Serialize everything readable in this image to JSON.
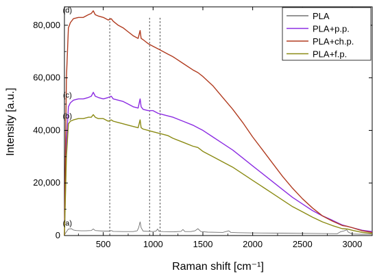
{
  "chart_data": {
    "type": "line",
    "xlabel": "Raman shift [cm⁻¹]",
    "ylabel": "Intensity [a.u.]",
    "xlim": [
      110,
      3200
    ],
    "ylim": [
      0,
      87000
    ],
    "x_ticks": [
      500,
      1000,
      1500,
      2000,
      2500,
      3000
    ],
    "x_tick_labels": [
      "500",
      "1000",
      "1500",
      "2000",
      "2500",
      "3000"
    ],
    "y_ticks": [
      0,
      20000,
      40000,
      60000,
      80000
    ],
    "y_tick_labels": [
      "0",
      "20,000",
      "40,000",
      "60,000",
      "80,000"
    ],
    "grid": false,
    "legend_position": "top-right",
    "vertical_markers": [
      565,
      965,
      1070
    ],
    "annotations": [
      {
        "label": "(a)",
        "x": 140,
        "y": 3800
      },
      {
        "label": "(b)",
        "x": 140,
        "y": 44500
      },
      {
        "label": "(c)",
        "x": 140,
        "y": 52500
      },
      {
        "label": "(d)",
        "x": 140,
        "y": 84800
      }
    ],
    "series": [
      {
        "name": "PLA",
        "color": "#707070",
        "x": [
          110,
          150,
          180,
          200,
          230,
          280,
          320,
          380,
          400,
          420,
          500,
          560,
          580,
          600,
          700,
          800,
          840,
          855,
          870,
          880,
          900,
          1000,
          1030,
          1045,
          1060,
          1100,
          1200,
          1280,
          1300,
          1320,
          1380,
          1420,
          1450,
          1480,
          1550,
          1700,
          1760,
          1780,
          1850,
          2000,
          2300,
          2600,
          2850,
          2880,
          2920,
          2945,
          2960,
          3000,
          3100,
          3200
        ],
        "y": [
          300,
          2500,
          2600,
          2100,
          1900,
          1800,
          1800,
          1900,
          2500,
          1900,
          1700,
          1700,
          1900,
          1600,
          1500,
          1500,
          1800,
          3000,
          5200,
          3000,
          1700,
          1500,
          1700,
          2500,
          1600,
          1500,
          1400,
          1600,
          2300,
          1500,
          1500,
          1800,
          2600,
          1500,
          1300,
          1200,
          1800,
          1200,
          1100,
          1000,
          900,
          800,
          700,
          1400,
          1800,
          2200,
          1300,
          600,
          500,
          500
        ]
      },
      {
        "name": "PLA+p.p.",
        "color": "#8B2BE2",
        "x": [
          110,
          130,
          150,
          170,
          200,
          250,
          300,
          350,
          380,
          400,
          420,
          450,
          500,
          550,
          580,
          600,
          650,
          700,
          750,
          800,
          850,
          870,
          880,
          900,
          950,
          1000,
          1050,
          1100,
          1150,
          1200,
          1300,
          1400,
          1450,
          1500,
          1600,
          1700,
          1800,
          1900,
          2000,
          2100,
          2200,
          2300,
          2400,
          2500,
          2600,
          2700,
          2800,
          2900,
          2950,
          3000,
          3100,
          3200
        ],
        "y": [
          0,
          35000,
          49000,
          50500,
          51500,
          52000,
          52000,
          52500,
          53000,
          54500,
          53000,
          52500,
          52000,
          52500,
          53000,
          52000,
          51500,
          51000,
          50000,
          49000,
          48500,
          52000,
          49000,
          48000,
          47500,
          47500,
          46500,
          46000,
          45500,
          45000,
          43500,
          42000,
          41000,
          40000,
          37500,
          35000,
          32500,
          29500,
          26500,
          23500,
          20500,
          17500,
          14500,
          12000,
          9500,
          7500,
          5800,
          4000,
          3500,
          3000,
          2000,
          1500
        ]
      },
      {
        "name": "PLA+ch.p.",
        "color": "#B03A1E",
        "x": [
          110,
          130,
          150,
          170,
          200,
          250,
          300,
          350,
          380,
          400,
          420,
          450,
          500,
          550,
          580,
          600,
          650,
          700,
          750,
          800,
          850,
          870,
          880,
          900,
          950,
          1000,
          1050,
          1100,
          1150,
          1200,
          1300,
          1400,
          1450,
          1500,
          1600,
          1700,
          1800,
          1900,
          2000,
          2100,
          2200,
          2300,
          2400,
          2500,
          2600,
          2700,
          2800,
          2900,
          2950,
          3000,
          3100,
          3200
        ],
        "y": [
          0,
          60000,
          79000,
          81000,
          82500,
          83000,
          83000,
          84000,
          84500,
          85500,
          84000,
          83500,
          83000,
          82000,
          82500,
          81500,
          80000,
          79000,
          77500,
          76000,
          75000,
          78000,
          75000,
          74500,
          73000,
          72000,
          71000,
          70000,
          69000,
          68000,
          65500,
          63000,
          62000,
          60500,
          57000,
          52500,
          48000,
          43000,
          37500,
          32500,
          27500,
          22500,
          18000,
          14000,
          10500,
          7500,
          5500,
          3800,
          3500,
          3000,
          1800,
          1200
        ]
      },
      {
        "name": "PLA+f.p.",
        "color": "#8A8A12",
        "x": [
          110,
          130,
          150,
          170,
          200,
          250,
          300,
          350,
          380,
          400,
          420,
          450,
          500,
          550,
          580,
          600,
          650,
          700,
          750,
          800,
          850,
          870,
          880,
          900,
          950,
          1000,
          1050,
          1100,
          1150,
          1200,
          1300,
          1400,
          1450,
          1500,
          1600,
          1700,
          1800,
          1900,
          2000,
          2100,
          2200,
          2300,
          2400,
          2500,
          2600,
          2700,
          2800,
          2900,
          2950,
          3000,
          3100,
          3200
        ],
        "y": [
          0,
          30000,
          42500,
          43500,
          44000,
          44500,
          44500,
          45000,
          45000,
          46000,
          45000,
          44500,
          44500,
          43500,
          44000,
          43500,
          43000,
          42500,
          42000,
          41500,
          41000,
          44000,
          41000,
          40500,
          40000,
          39500,
          39000,
          38500,
          38000,
          37000,
          35500,
          34000,
          33500,
          32000,
          30000,
          28000,
          26000,
          23500,
          21000,
          18500,
          16000,
          13500,
          11000,
          9000,
          7000,
          5200,
          3800,
          2600,
          2500,
          2000,
          1200,
          800
        ]
      }
    ]
  }
}
